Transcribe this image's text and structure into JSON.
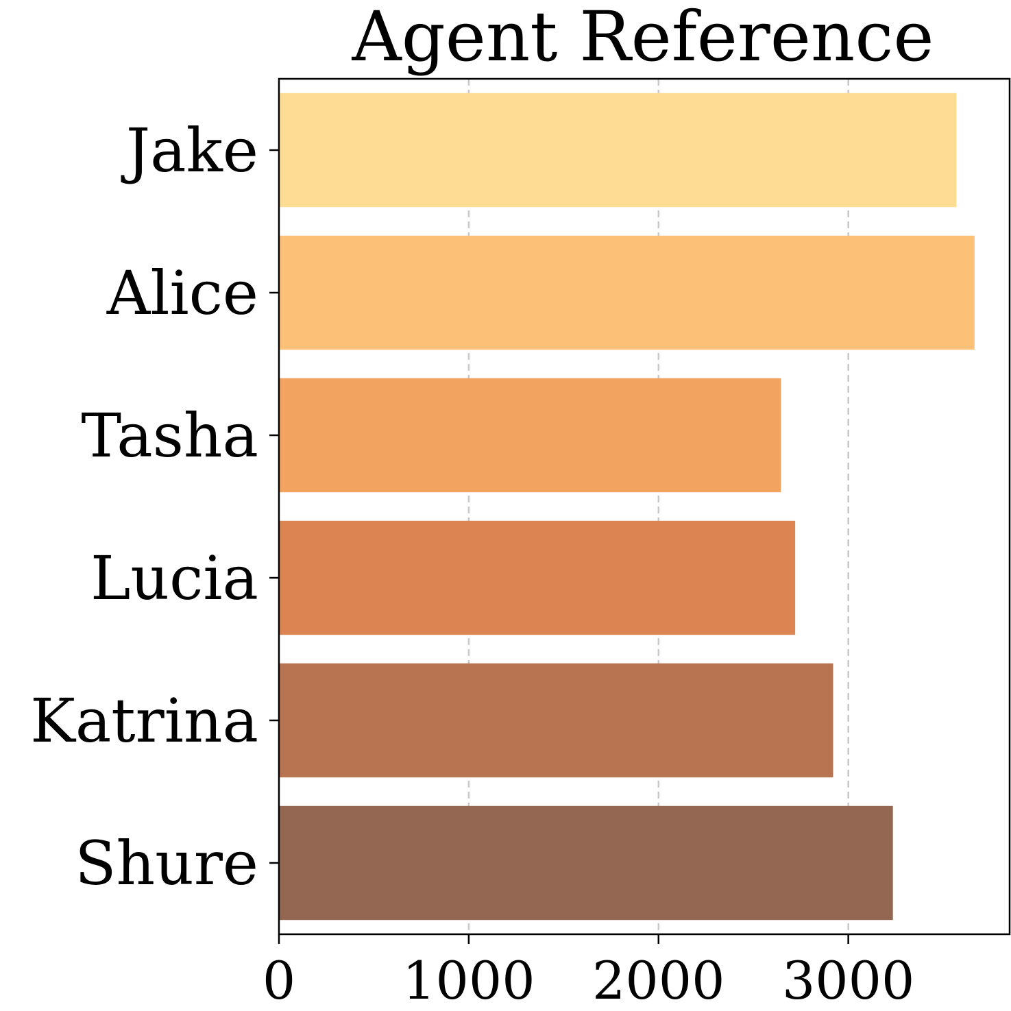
{
  "chart_data": {
    "type": "bar",
    "orientation": "horizontal",
    "title": "Agent Reference",
    "xlabel": "",
    "ylabel": "",
    "categories": [
      "Jake",
      "Alice",
      "Tasha",
      "Lucia",
      "Katrina",
      "Shure"
    ],
    "values": [
      3570,
      3665,
      2645,
      2720,
      2920,
      3235
    ],
    "colors": [
      "#fddc94",
      "#fcc177",
      "#f1a35f",
      "#dd8552",
      "#b87351",
      "#936751"
    ],
    "xlim": [
      0,
      3850
    ],
    "xticks": [
      0,
      1000,
      2000,
      3000
    ],
    "xtick_labels": [
      "0",
      "1000",
      "2000",
      "3000"
    ],
    "grid": "x-dashed"
  }
}
